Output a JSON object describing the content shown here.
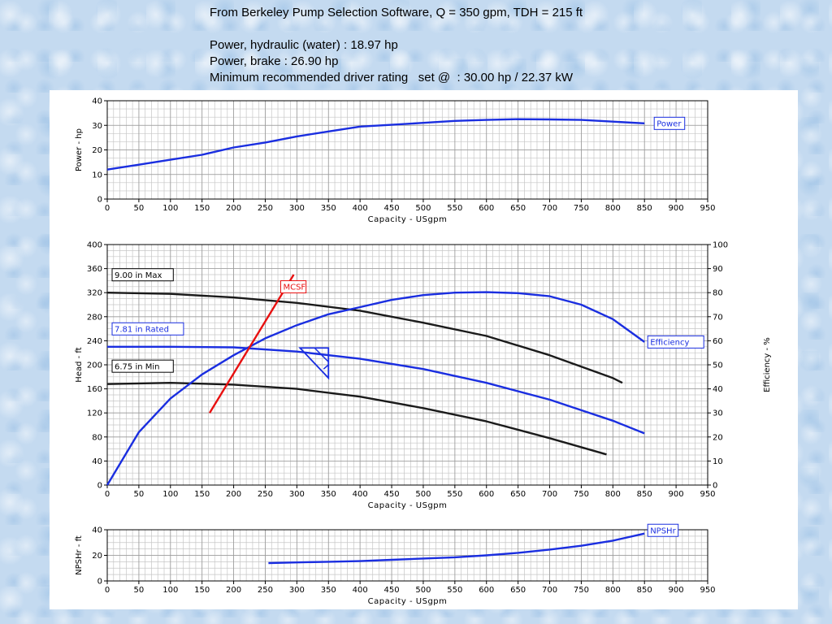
{
  "header": {
    "line1": "From Berkeley Pump Selection Software, Q = 350 gpm, TDH = 215 ft",
    "line2": "Power, hydraulic (water) : 18.97 hp",
    "line3": "Power, brake : 26.90 hp",
    "line4": "Minimum recommended driver rating   set @  : 30.00 hp / 22.37 kW"
  },
  "chart_data": [
    {
      "type": "line",
      "xlabel": "Capacity - USgpm",
      "ylabel": "Power - hp",
      "xlim": [
        0,
        950
      ],
      "ylim": [
        0,
        40
      ],
      "xticks": [
        0,
        50,
        100,
        150,
        200,
        250,
        300,
        350,
        400,
        450,
        500,
        550,
        600,
        650,
        700,
        750,
        800,
        850,
        900,
        950
      ],
      "yticks": [
        0,
        10,
        20,
        30,
        40
      ],
      "grid": true,
      "series": [
        {
          "name": "Power",
          "color": "#1a2ee0",
          "x": [
            0,
            50,
            100,
            150,
            200,
            250,
            300,
            350,
            400,
            450,
            500,
            550,
            600,
            650,
            700,
            750,
            800,
            850
          ],
          "y": [
            12,
            14,
            16,
            18,
            21,
            23,
            25.5,
            27.5,
            29.5,
            30.2,
            31,
            31.8,
            32.2,
            32.5,
            32.4,
            32.2,
            31.5,
            30.8
          ]
        }
      ]
    },
    {
      "type": "line",
      "xlabel": "Capacity - USgpm",
      "ylabel": "Head - ft",
      "y2label": "Efficiency - %",
      "xlim": [
        0,
        950
      ],
      "ylim": [
        0,
        400
      ],
      "y2lim": [
        0,
        100
      ],
      "xticks": [
        0,
        50,
        100,
        150,
        200,
        250,
        300,
        350,
        400,
        450,
        500,
        550,
        600,
        650,
        700,
        750,
        800,
        850,
        900,
        950
      ],
      "yticks": [
        0,
        40,
        80,
        120,
        160,
        200,
        240,
        280,
        320,
        360,
        400
      ],
      "y2ticks": [
        0,
        10,
        20,
        30,
        40,
        50,
        60,
        70,
        80,
        90,
        100
      ],
      "grid": true,
      "series": [
        {
          "name": "9.00 in Max",
          "color": "#1a1a1a",
          "x": [
            0,
            100,
            200,
            300,
            400,
            500,
            600,
            700,
            800,
            815
          ],
          "y": [
            320,
            318,
            312,
            303,
            290,
            270,
            248,
            216,
            178,
            170
          ]
        },
        {
          "name": "7.81 in Rated",
          "color": "#1a2ee0",
          "x": [
            0,
            100,
            200,
            300,
            400,
            500,
            600,
            700,
            800,
            850
          ],
          "y": [
            230,
            230,
            229,
            222,
            210,
            193,
            170,
            142,
            107,
            86
          ]
        },
        {
          "name": "6.75 in Min",
          "color": "#1a1a1a",
          "x": [
            0,
            100,
            200,
            300,
            400,
            500,
            600,
            700,
            790
          ],
          "y": [
            168,
            170,
            167,
            160,
            147,
            128,
            106,
            78,
            51
          ]
        },
        {
          "name": "Efficiency",
          "color": "#1a2ee0",
          "axis": "right",
          "x": [
            0,
            50,
            100,
            150,
            200,
            250,
            300,
            350,
            400,
            450,
            500,
            550,
            600,
            650,
            700,
            750,
            800,
            850
          ],
          "y": [
            0,
            22,
            36,
            46,
            54,
            61,
            66.5,
            71,
            74,
            77,
            79,
            80,
            80.2,
            79.8,
            78.5,
            75,
            69,
            59.5
          ]
        },
        {
          "name": "MCSF",
          "color": "#e81010",
          "x": [
            162,
            295
          ],
          "y": [
            120,
            350
          ]
        }
      ],
      "annotations": [
        {
          "text": "MCSF",
          "color": "#e81010"
        },
        {
          "text": "9.00 in Max",
          "color": "#000000"
        },
        {
          "text": "7.81 in Rated",
          "color": "#1a2ee0"
        },
        {
          "text": "6.75 in Min",
          "color": "#000000"
        },
        {
          "text": "Efficiency",
          "color": "#1a2ee0"
        }
      ],
      "operating_point": {
        "x": 350,
        "y": 215
      }
    },
    {
      "type": "line",
      "xlabel": "Capacity - USgpm",
      "ylabel": "NPSHr - ft",
      "xlim": [
        0,
        950
      ],
      "ylim": [
        0,
        40
      ],
      "xticks": [
        0,
        50,
        100,
        150,
        200,
        250,
        300,
        350,
        400,
        450,
        500,
        550,
        600,
        650,
        700,
        750,
        800,
        850,
        900,
        950
      ],
      "yticks": [
        0,
        20,
        40
      ],
      "grid": true,
      "series": [
        {
          "name": "NPSHr",
          "color": "#1a2ee0",
          "x": [
            255,
            300,
            350,
            400,
            450,
            500,
            550,
            600,
            650,
            700,
            750,
            800,
            850
          ],
          "y": [
            14,
            14.5,
            15,
            15.5,
            16.5,
            17.5,
            18.5,
            20,
            22,
            24.5,
            27.5,
            31.5,
            37
          ]
        }
      ]
    }
  ]
}
